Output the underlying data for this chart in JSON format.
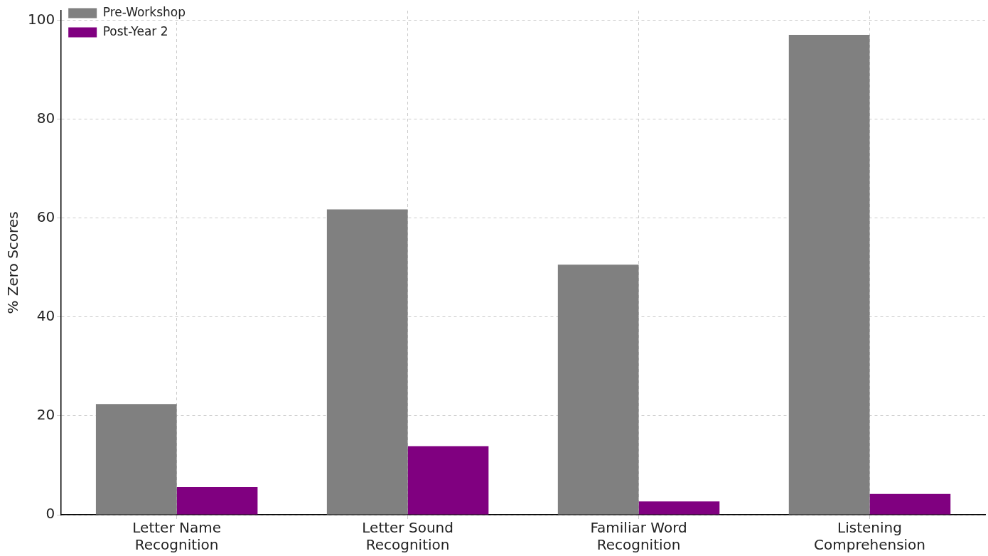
{
  "chart_data": {
    "type": "bar",
    "ylabel": "% Zero Scores",
    "categories": [
      "Letter Name Recognition",
      "Letter Sound Recognition",
      "Familiar Word Recognition",
      "Listening Comprehension"
    ],
    "series": [
      {
        "name": "Pre-Workshop",
        "color": "#808080",
        "values": [
          22.4,
          61.8,
          50.6,
          97.1
        ]
      },
      {
        "name": "Post-Year 2",
        "color": "#800080",
        "values": [
          5.6,
          13.9,
          2.7,
          4.2
        ]
      }
    ],
    "ylim": [
      0,
      102
    ],
    "yticks": [
      0,
      20,
      40,
      60,
      80,
      100
    ],
    "grid": true,
    "legend": "top left"
  }
}
